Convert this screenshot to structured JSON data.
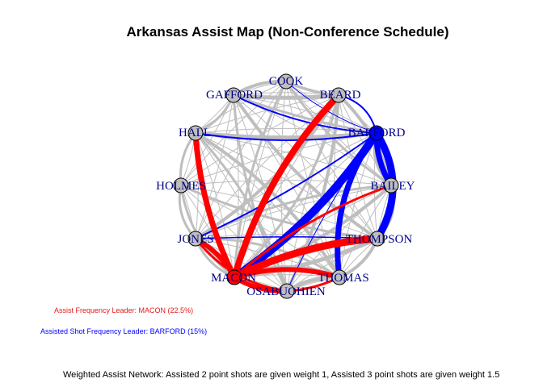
{
  "title": "Arkansas Assist Map (Non-Conference Schedule)",
  "colors": {
    "frequency_leader": "#ff0000",
    "shot_leader": "#0000ff",
    "edge_default": "#bebebe",
    "node_default": "#bebebe",
    "label": "#00008b"
  },
  "network": {
    "players": [
      "COOK",
      "BEARD",
      "BARFORD",
      "BAILEY",
      "THOMPSON",
      "THOMAS",
      "OSABUOHIEN",
      "MACON",
      "JONES",
      "HOLMES",
      "HALL",
      "GAFFORD"
    ],
    "highlighted_nodes": {
      "MACON": "frequency_leader",
      "BARFORD": "shot_leader"
    }
  },
  "legend": {
    "frequency_leader": "Assist Frequency Leader: MACON (22.5%)",
    "shot_leader": "Assisted Shot Frequency Leader: BARFORD (15%)"
  },
  "footnote": "Weighted Assist Network: Assisted 2 point shots are given weight 1, Assisted 3 point shots are given weight 1.5"
}
